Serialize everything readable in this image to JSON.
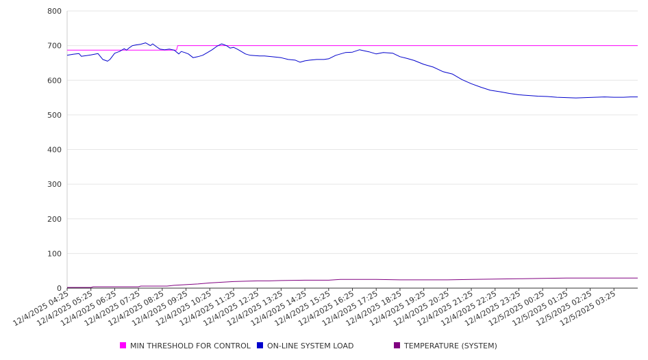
{
  "chart_data": {
    "type": "line",
    "ylim": [
      0,
      800
    ],
    "y_ticks": [
      0,
      100,
      200,
      300,
      400,
      500,
      600,
      700,
      800
    ],
    "x_tick_labels": [
      "12/4/2025 04:25",
      "12/4/2025 05:25",
      "12/4/2025 06:25",
      "12/4/2025 07:25",
      "12/4/2025 08:25",
      "12/4/2025 09:25",
      "12/4/2025 10:25",
      "12/4/2025 11:25",
      "12/4/2025 12:25",
      "12/4/2025 13:25",
      "12/4/2025 14:25",
      "12/4/2025 15:25",
      "12/4/2025 16:25",
      "12/4/2025 17:25",
      "12/4/2025 18:25",
      "12/4/2025 19:25",
      "12/4/2025 20:25",
      "12/4/2025 21:25",
      "12/4/2025 22:25",
      "12/4/2025 23:25",
      "12/5/2025 00:25",
      "12/5/2025 01:25",
      "12/5/2025 02:25",
      "12/5/2025 03:25"
    ],
    "x_range_hours": [
      0,
      24
    ],
    "grid": true,
    "legend_position": "bottom",
    "series": [
      {
        "name": "MIN THRESHOLD FOR CONTROL",
        "color": "#ff00ff",
        "x": [
          0,
          4.6,
          4.65,
          24
        ],
        "y": [
          687,
          687,
          700,
          700
        ]
      },
      {
        "name": "ON-LINE SYSTEM LOAD",
        "color": "#0000cc",
        "x": [
          0,
          0.25,
          0.5,
          0.6,
          0.7,
          1.0,
          1.3,
          1.5,
          1.7,
          1.8,
          2.0,
          2.2,
          2.4,
          2.5,
          2.6,
          2.75,
          2.9,
          3.1,
          3.3,
          3.5,
          3.6,
          3.75,
          3.9,
          4.1,
          4.3,
          4.5,
          4.7,
          4.8,
          4.95,
          5.1,
          5.3,
          5.5,
          5.7,
          5.9,
          6.1,
          6.3,
          6.5,
          6.7,
          6.85,
          7.0,
          7.15,
          7.3,
          7.5,
          7.7,
          7.9,
          8.1,
          8.3,
          8.6,
          9.0,
          9.3,
          9.6,
          9.8,
          10.0,
          10.2,
          10.5,
          10.8,
          11.0,
          11.3,
          11.7,
          12.0,
          12.3,
          12.7,
          13.0,
          13.3,
          13.7,
          14.0,
          14.3,
          14.6,
          15.0,
          15.4,
          15.8,
          16.2,
          16.6,
          17.0,
          17.4,
          17.8,
          18.2,
          18.6,
          19.0,
          19.4,
          19.8,
          20.2,
          20.6,
          21.0,
          21.4,
          21.8,
          22.2,
          22.6,
          23.0,
          23.4,
          23.7,
          24.0
        ],
        "y": [
          672,
          675,
          677,
          669,
          670,
          673,
          677,
          660,
          655,
          660,
          678,
          683,
          691,
          687,
          693,
          700,
          702,
          704,
          708,
          700,
          705,
          697,
          690,
          688,
          690,
          687,
          676,
          683,
          680,
          676,
          665,
          668,
          672,
          680,
          688,
          698,
          705,
          700,
          693,
          695,
          690,
          684,
          676,
          672,
          671,
          670,
          670,
          668,
          665,
          660,
          658,
          652,
          656,
          658,
          660,
          660,
          662,
          672,
          680,
          681,
          688,
          682,
          676,
          680,
          678,
          668,
          663,
          657,
          646,
          638,
          625,
          618,
          602,
          590,
          580,
          571,
          567,
          562,
          558,
          556,
          554,
          553,
          551,
          550,
          549,
          550,
          551,
          552,
          551,
          551,
          552,
          552
        ]
      },
      {
        "name": "TEMPERATURE (SYSTEM)",
        "color": "#800080",
        "x": [
          0,
          1.0,
          1.1,
          3.0,
          3.1,
          4.2,
          4.5,
          5.0,
          5.5,
          6.0,
          6.5,
          7.0,
          7.5,
          8.0,
          8.5,
          9.0,
          10.0,
          11.0,
          11.5,
          12.0,
          13.0,
          14.0,
          15.0,
          16.0,
          17.0,
          18.0,
          19.0,
          20.0,
          21.0,
          22.0,
          23.0,
          24.0
        ],
        "y": [
          2,
          2,
          4,
          4,
          6,
          6,
          8,
          10,
          12,
          15,
          17,
          19,
          20,
          21,
          21,
          22,
          23,
          23,
          25,
          25,
          25,
          24,
          24,
          24,
          25,
          26,
          27,
          28,
          29,
          29,
          29,
          29
        ]
      }
    ]
  }
}
